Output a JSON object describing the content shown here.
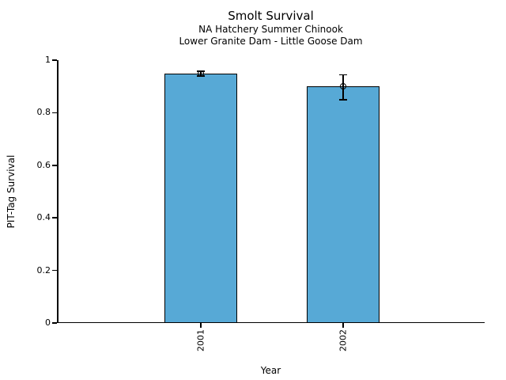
{
  "chart_data": {
    "type": "bar",
    "title": "Smolt Survival",
    "subtitle": [
      "NA Hatchery Summer Chinook",
      "Lower Granite Dam - Little Goose Dam"
    ],
    "xlabel": "Year",
    "ylabel": "PIT-Tag Survival",
    "categories": [
      "2001",
      "2002"
    ],
    "values": [
      0.95,
      0.9
    ],
    "error_bars": {
      "upper": [
        0.958,
        0.945
      ],
      "lower": [
        0.94,
        0.85
      ]
    },
    "ylim": [
      0,
      1
    ],
    "yticks": [
      0,
      0.2,
      0.4,
      0.6,
      0.8,
      1
    ],
    "ytick_labels": [
      "0",
      "0.2",
      "0.4",
      "0.6",
      "0.8",
      "1"
    ],
    "grid": false,
    "legend": "none",
    "marker": "open-circle",
    "bar_color": "#57A9D6",
    "bar_edge_color": "#000000",
    "axis_color": "#000000",
    "text_color": "#000000",
    "background_color": "#FFFFFF"
  }
}
